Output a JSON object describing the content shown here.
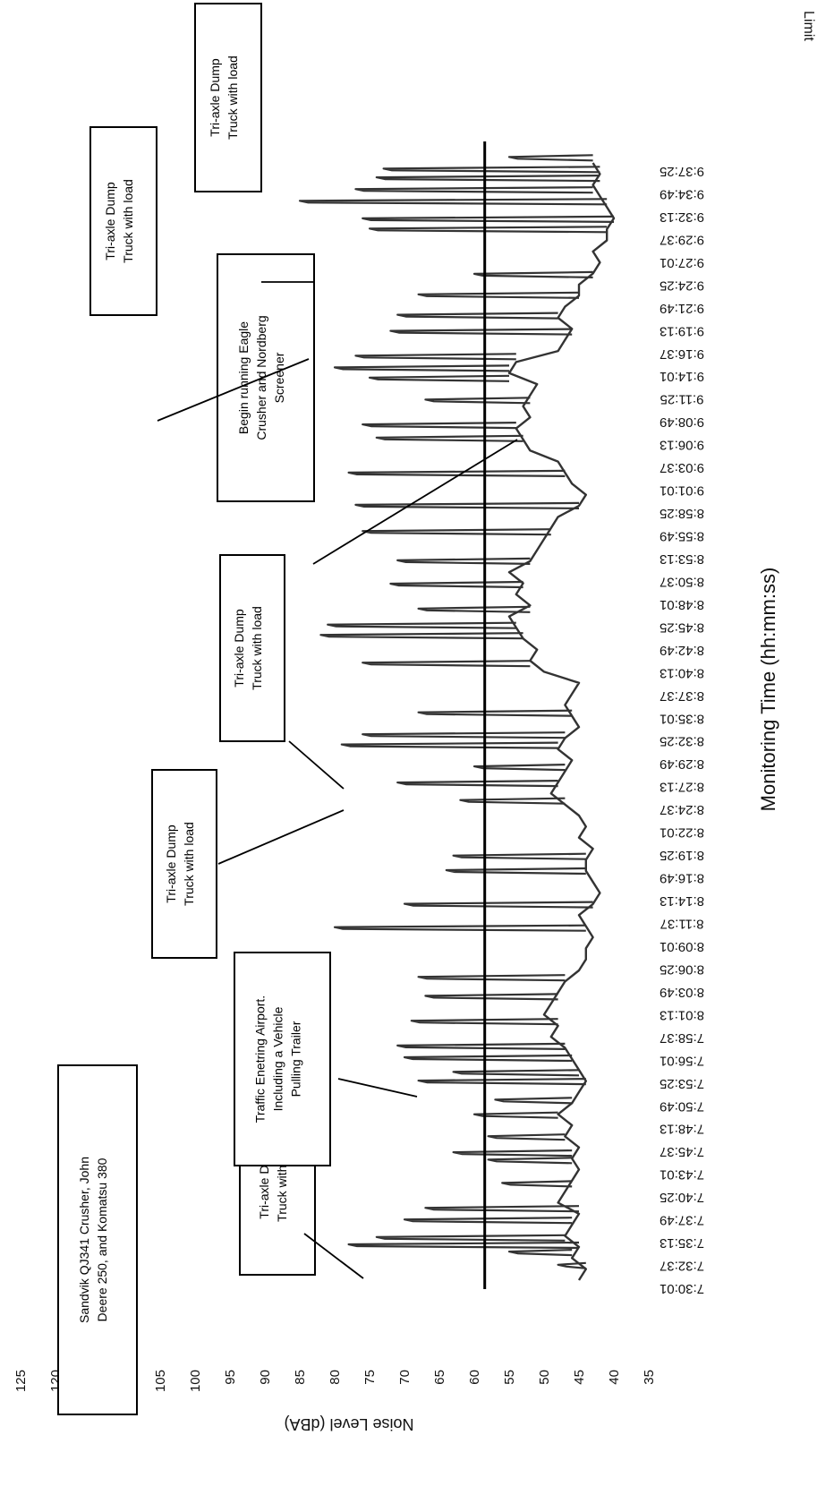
{
  "chart_data": {
    "type": "line",
    "title": "",
    "xlabel": "Monitoring Time (hh:mm:ss)",
    "ylabel": "Noise Level (dBA)",
    "ylim": [
      35,
      125
    ],
    "yticks": [
      35,
      40,
      45,
      50,
      55,
      60,
      65,
      70,
      75,
      80,
      85,
      90,
      95,
      100,
      105,
      110,
      115,
      120,
      125
    ],
    "x_tick_labels": [
      "7:30:01",
      "7:32:37",
      "7:35:13",
      "7:37:49",
      "7:40:25",
      "7:43:01",
      "7:45:37",
      "7:48:13",
      "7:50:49",
      "7:53:25",
      "7:56:01",
      "7:58:37",
      "8:01:13",
      "8:03:49",
      "8:06:25",
      "8:09:01",
      "8:11:37",
      "8:14:13",
      "8:16:49",
      "8:19:25",
      "8:22:01",
      "8:24:37",
      "8:27:13",
      "8:29:49",
      "8:32:25",
      "8:35:01",
      "8:37:37",
      "8:40:13",
      "8:42:49",
      "8:45:25",
      "8:48:01",
      "8:50:37",
      "8:53:13",
      "8:55:49",
      "8:58:25",
      "9:01:01",
      "9:03:37",
      "9:06:13",
      "9:08:49",
      "9:11:25",
      "9:14:01",
      "9:16:37",
      "9:19:13",
      "9:21:49",
      "9:24:25",
      "9:27:01",
      "9:29:37",
      "9:32:13",
      "9:34:49",
      "9:37:25"
    ],
    "grid": false,
    "legend": "none",
    "limit_line": {
      "label": "Limit",
      "value": 58.5,
      "color": "#000000"
    },
    "series": [
      {
        "color": "#333333",
        "baseline": [
          45,
          44,
          46,
          45,
          47,
          46,
          45,
          48,
          47,
          46,
          45,
          46,
          45,
          47,
          46,
          48,
          46,
          45,
          44,
          45,
          46,
          47,
          49,
          48,
          50,
          49,
          48,
          47,
          45,
          44,
          44,
          43,
          44,
          45,
          43,
          42,
          43,
          44,
          44,
          43,
          45,
          44,
          45,
          47,
          49,
          48,
          47,
          46,
          48,
          47,
          45,
          46,
          47,
          46,
          45,
          50,
          52,
          51,
          53,
          54,
          55,
          52,
          54,
          53,
          55,
          52,
          51,
          50,
          49,
          48,
          45,
          44,
          46,
          47,
          48,
          52,
          53,
          54,
          52,
          53,
          52,
          51,
          55,
          54,
          48,
          47,
          46,
          48,
          47,
          45,
          45,
          43,
          42,
          43,
          41,
          41,
          40,
          41,
          42,
          43,
          42,
          43
        ],
        "peaks": [
          {
            "x": "7:31:40",
            "y": 48
          },
          {
            "x": "7:33:10",
            "y": 55
          },
          {
            "x": "7:34:00",
            "y": 78
          },
          {
            "x": "7:34:50",
            "y": 74
          },
          {
            "x": "7:36:50",
            "y": 70
          },
          {
            "x": "7:38:10",
            "y": 67
          },
          {
            "x": "7:41:00",
            "y": 56
          },
          {
            "x": "7:43:40",
            "y": 58
          },
          {
            "x": "7:44:30",
            "y": 63
          },
          {
            "x": "7:46:20",
            "y": 58
          },
          {
            "x": "7:48:50",
            "y": 60
          },
          {
            "x": "7:50:30",
            "y": 57
          },
          {
            "x": "7:52:40",
            "y": 68
          },
          {
            "x": "7:53:40",
            "y": 63
          },
          {
            "x": "7:55:20",
            "y": 70
          },
          {
            "x": "7:56:40",
            "y": 71
          },
          {
            "x": "7:59:30",
            "y": 69
          },
          {
            "x": "8:02:20",
            "y": 67
          },
          {
            "x": "8:04:30",
            "y": 68
          },
          {
            "x": "8:10:10",
            "y": 80
          },
          {
            "x": "8:12:50",
            "y": 70
          },
          {
            "x": "8:16:40",
            "y": 64
          },
          {
            "x": "8:18:20",
            "y": 63
          },
          {
            "x": "8:24:40",
            "y": 62
          },
          {
            "x": "8:26:40",
            "y": 71
          },
          {
            "x": "8:28:30",
            "y": 60
          },
          {
            "x": "8:31:00",
            "y": 79
          },
          {
            "x": "8:32:10",
            "y": 76
          },
          {
            "x": "8:34:40",
            "y": 68
          },
          {
            "x": "8:40:20",
            "y": 76
          },
          {
            "x": "8:43:30",
            "y": 82
          },
          {
            "x": "8:44:40",
            "y": 81
          },
          {
            "x": "8:46:30",
            "y": 68
          },
          {
            "x": "8:49:20",
            "y": 72
          },
          {
            "x": "8:52:00",
            "y": 71
          },
          {
            "x": "8:55:20",
            "y": 76
          },
          {
            "x": "8:58:20",
            "y": 77
          },
          {
            "x": "9:02:00",
            "y": 78
          },
          {
            "x": "9:06:00",
            "y": 74
          },
          {
            "x": "9:07:30",
            "y": 76
          },
          {
            "x": "9:10:20",
            "y": 67
          },
          {
            "x": "9:12:50",
            "y": 75
          },
          {
            "x": "9:14:00",
            "y": 80
          },
          {
            "x": "9:15:20",
            "y": 77
          },
          {
            "x": "9:18:10",
            "y": 72
          },
          {
            "x": "9:20:00",
            "y": 71
          },
          {
            "x": "9:22:20",
            "y": 68
          },
          {
            "x": "9:24:40",
            "y": 60
          },
          {
            "x": "9:29:50",
            "y": 75
          },
          {
            "x": "9:31:00",
            "y": 76
          },
          {
            "x": "9:33:00",
            "y": 85
          },
          {
            "x": "9:34:20",
            "y": 77
          },
          {
            "x": "9:35:40",
            "y": 74
          },
          {
            "x": "9:36:40",
            "y": 73
          },
          {
            "x": "9:38:00",
            "y": 55
          }
        ]
      }
    ],
    "annotations": [
      {
        "text": "Tri-axle Dump Truck with load",
        "target_x": "7:33:40",
        "target_y": 80
      },
      {
        "text": "Sandvik QJ341 Crusher, John Deere 250, and Komatsu 380"
      },
      {
        "text": "Traffic Enetring Airport. Including a Vehicle Pulling Trailer",
        "target_x": "7:57:30",
        "target_y": 69
      },
      {
        "text": "Tri-axle Dump Truck with load",
        "target_x": "8:27:10",
        "target_y": 81
      },
      {
        "text": "Tri-axle Dump Truck with load",
        "target_x": "8:42:00",
        "target_y": 82
      },
      {
        "text": "Begin running Eagle Crusher and Nordberg Screener",
        "target_x": "9:07:20",
        "target_y": 77
      },
      {
        "text": "Tri-axle Dump Truck with load",
        "target_x": "9:13:30",
        "target_y": 86
      },
      {
        "text": "Tri-axle Dump Truck with load",
        "target_x": "9:33:40",
        "target_y": 85
      }
    ]
  }
}
